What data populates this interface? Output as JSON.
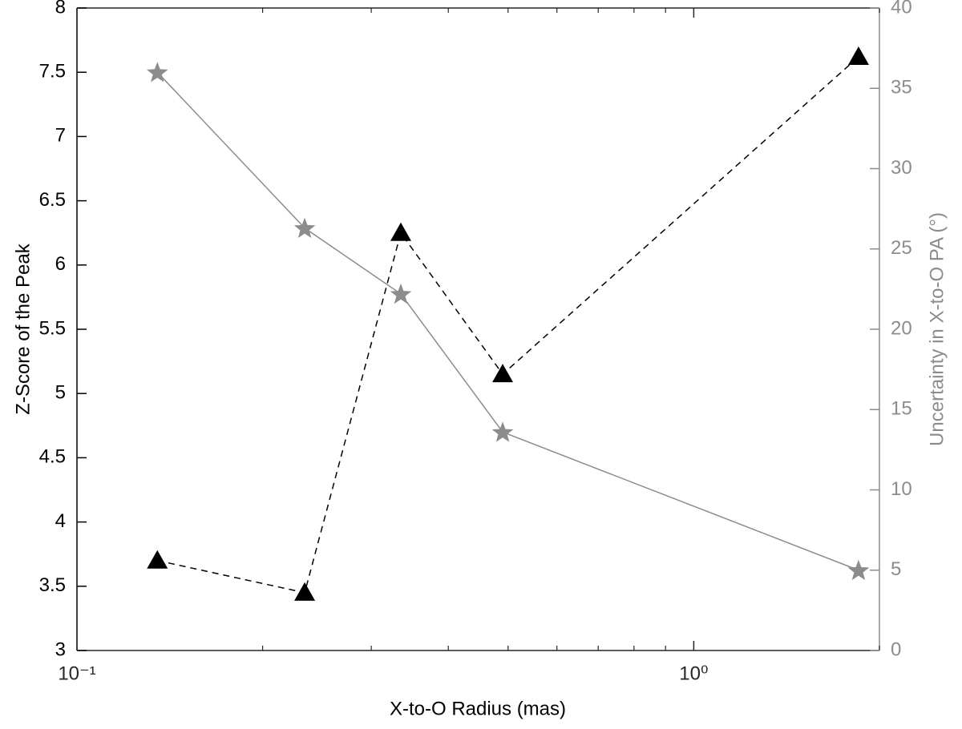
{
  "chart_data": {
    "type": "line",
    "x_label": "X-to-O Radius (mas)",
    "y_label": "Z-Score of the Peak",
    "y2_label": "Uncertainty in X-to-O PA (°)",
    "x": [
      0.135,
      0.234,
      0.335,
      0.49,
      1.85
    ],
    "xlim": [
      0.1,
      2
    ],
    "x_log": true,
    "xticks": [
      {
        "value": 0.1,
        "label": "10⁻¹"
      },
      {
        "value": 1,
        "label": "10⁰"
      }
    ],
    "xminor_ticks": [
      0.2,
      0.3,
      0.4,
      0.5,
      0.6,
      0.7,
      0.8,
      0.9,
      2
    ],
    "ylim": [
      3,
      8
    ],
    "yticks": [
      3,
      3.5,
      4,
      4.5,
      5,
      5.5,
      6,
      6.5,
      7,
      7.5,
      8
    ],
    "y2lim": [
      0,
      40
    ],
    "y2ticks": [
      0,
      5,
      10,
      15,
      20,
      25,
      30,
      35,
      40
    ],
    "y_color": "#000000",
    "y2_color": "#8c8c8c",
    "grid": false,
    "series": [
      {
        "color": "#000000",
        "marker": "triangle",
        "line": "dashed",
        "values": [
          3.7,
          3.45,
          6.25,
          5.15,
          7.62
        ]
      },
      {
        "color": "#8c8c8c",
        "marker": "star",
        "line": "solid",
        "axis": "y2",
        "values": [
          36.0,
          26.3,
          22.2,
          13.6,
          5.0
        ]
      }
    ]
  }
}
